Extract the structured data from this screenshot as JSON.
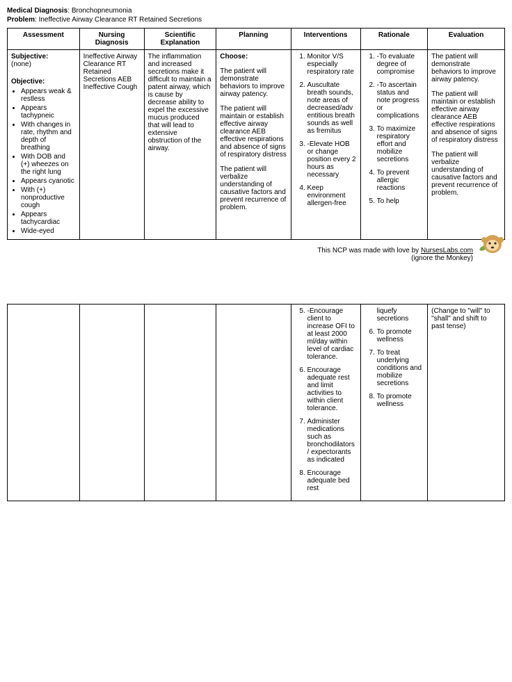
{
  "header": {
    "diag_label": "Medical Diagnosis",
    "diag_value": "Bronchopneumonia",
    "problem_label": "Problem",
    "problem_value": "Ineffective Airway Clearance RT Retained Secretions"
  },
  "columns": [
    "Assessment",
    "Nursing Diagnosis",
    "Scientific Explanation",
    "Planning",
    "Interventions",
    "Rationale",
    "Evaluation"
  ],
  "col_widths": [
    "14.5%",
    "13%",
    "14.5%",
    "15%",
    "14%",
    "13.5%",
    "15.5%"
  ],
  "assessment": {
    "subj_label": "Subjective:",
    "subj_text": "(none)",
    "obj_label": "Objective:",
    "bullets": [
      "Appears weak & restless",
      "Appears tachypneic",
      "With changes in rate, rhythm and depth of breathing",
      "With DOB and (+) wheezes on the right lung",
      "Appears cyanotic",
      "With (+) nonproductive cough",
      "Appears tachycardiac",
      "Wide-eyed"
    ]
  },
  "nursing_dx": "Ineffective Airway Clearance RT Retained Secretions AEB Ineffective Cough",
  "sci_expl": "The inflammation and increased secretions make it difficult to maintain a patent airway, which is cause by decrease ability to expel the excessive mucus produced that will lead to extensive obstruction of the airway.",
  "planning": {
    "choose": "Choose:",
    "p1": "The patient will demonstrate behaviors to improve airway patency.",
    "p2": "The patient will maintain or establish effective airway clearance AEB effective respirations and absence of signs of respiratory distress",
    "p3": "The patient will verbalize understanding of causative factors and prevent recurrence of problem."
  },
  "interventions_a": [
    "Monitor V/S especially respiratory rate",
    "Auscultate breath sounds, note areas of decreased/adventitious breath sounds as well as fremitus",
    "-Elevate HOB or change position every 2 hours as necessary",
    "Keep environment allergen-free"
  ],
  "rationale_a": [
    "-To evaluate degree of compromise",
    "-To ascertain status and note progress or complications",
    "To maximize respiratory effort and mobilize secretions",
    "To prevent allergic reactions",
    "To help"
  ],
  "evaluation": {
    "e1": "The patient will demonstrate behaviors to improve airway patency.",
    "e2": "The patient will maintain or establish effective airway clearance AEB effective respirations and absence of signs of respiratory distress",
    "e3": "The patient will verbalize understanding of causative factors and prevent recurrence of problem."
  },
  "credit": {
    "line1_pre": "This NCP was made with love by ",
    "link": "NursesLabs.com",
    "line2": "(ignore the Monkey)"
  },
  "rationale_b_pre": "liquefy secretions",
  "interventions_b": [
    "-Encourage client to increase OFI to at least 2000 ml/day within level of cardiac tolerance.",
    "Encourage adequate rest and limit activities to within client tolerance.",
    "Administer medications such as bronchodilators/ expectorants as indicated",
    "Encourage adequate bed rest"
  ],
  "rationale_b": [
    "To promote wellness",
    "To treat underlying conditions and mobilize secretions",
    "To promote wellness"
  ],
  "eval_b": "(Change to \"will\" to \"shall\" and shift to past tense)"
}
